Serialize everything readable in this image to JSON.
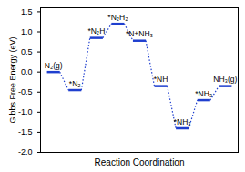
{
  "chart_data": {
    "type": "energy_profile",
    "x_label": "Reaction Coordination",
    "y_label": "Gibbs Free Energy (eV)",
    "categories": [
      "N₂(g)",
      "*N₂",
      "*N₂H",
      "*N₂H₂",
      "*N+NH₃",
      "*NH",
      "*NH₂",
      "*NH₃",
      "NH₃(g)"
    ],
    "values": [
      0.0,
      -0.45,
      0.85,
      1.2,
      0.78,
      -0.35,
      -1.4,
      -0.7,
      -0.35
    ],
    "color": "#1f3fcf",
    "line_style": "dotted",
    "ylim": [
      -2.0,
      1.6
    ],
    "yticks": [
      {
        "value": -2.0,
        "label": "-2.0"
      },
      {
        "value": -1.5,
        "label": "-1.5"
      },
      {
        "value": -1.0,
        "label": "-1.0"
      },
      {
        "value": -0.5,
        "label": "-0.5"
      },
      {
        "value": 0.0,
        "label": "0.0"
      },
      {
        "value": 0.5,
        "label": "0.5"
      },
      {
        "value": 1.0,
        "label": "1.0"
      },
      {
        "value": 1.5,
        "label": "1.5"
      }
    ],
    "tick_labels": "y"
  }
}
